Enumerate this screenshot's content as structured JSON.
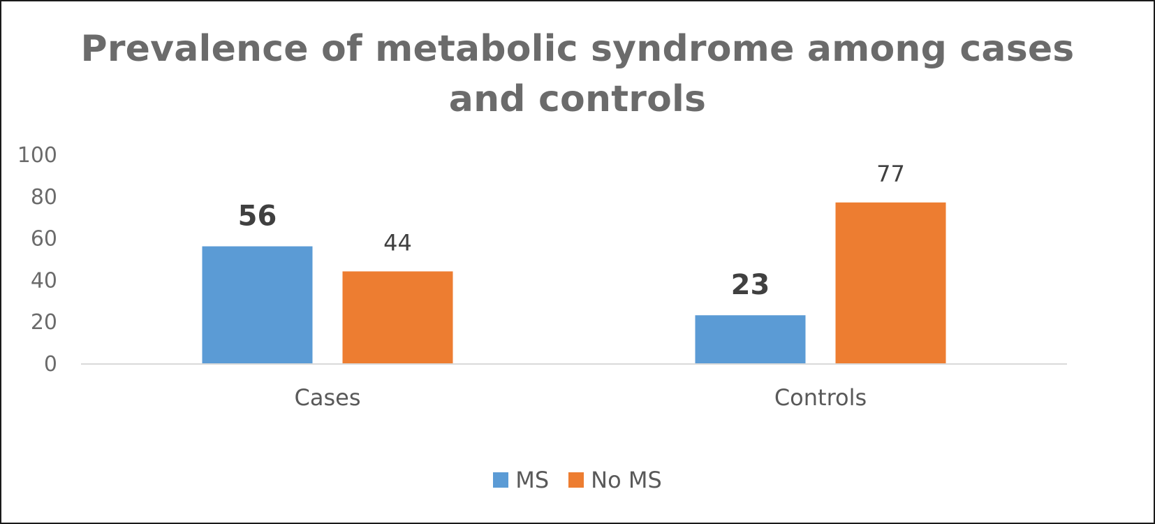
{
  "chart_data": {
    "type": "bar",
    "title": "Prevalence of metabolic syndrome among cases and controls",
    "title_lines": [
      "Prevalence of metabolic syndrome among cases",
      "and controls"
    ],
    "categories": [
      "Cases",
      "Controls"
    ],
    "series": [
      {
        "name": "MS",
        "values": [
          56,
          23
        ],
        "color": "#5b9bd5",
        "label_bold": true
      },
      {
        "name": "No MS",
        "values": [
          44,
          77
        ],
        "color": "#ed7d31",
        "label_bold": false
      }
    ],
    "ylim": [
      0,
      100
    ],
    "yticks": [
      0,
      20,
      40,
      60,
      80,
      100
    ],
    "xlabel": "",
    "ylabel": "",
    "grid": false,
    "legend_position": "bottom",
    "axis_color": "#d9d9d9"
  }
}
